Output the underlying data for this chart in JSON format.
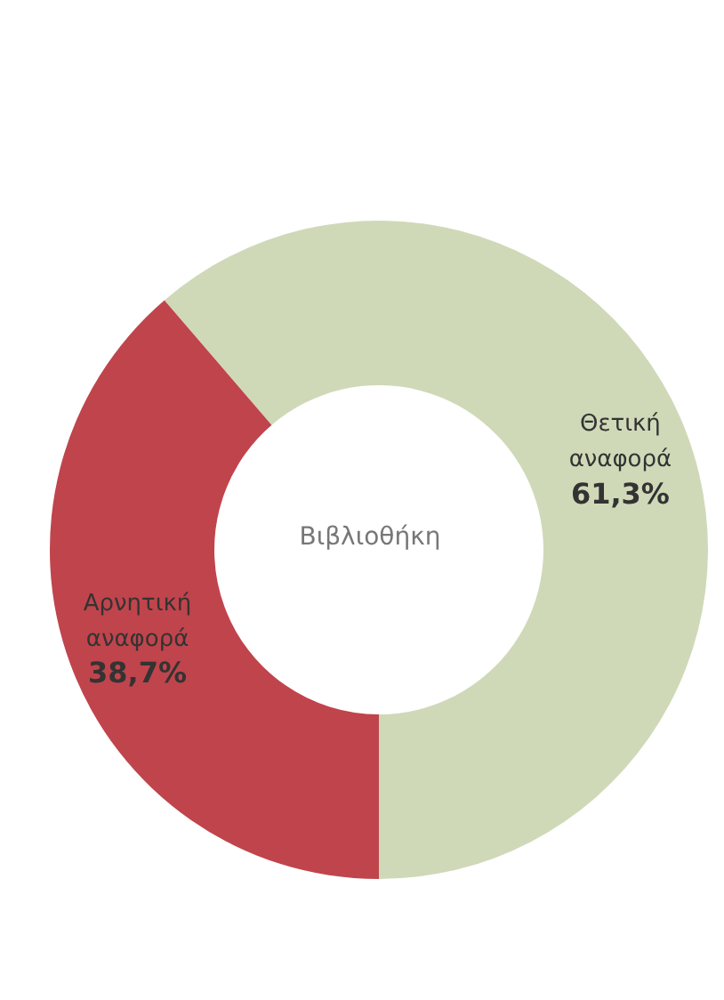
{
  "chart_data": {
    "type": "donut",
    "title": "Βιβλιοθήκη",
    "categories": [
      "Θετική αναφορά",
      "Αρνητική αναφορά"
    ],
    "values": [
      61.3,
      38.7
    ],
    "value_labels": [
      "61,3%",
      "38,7%"
    ],
    "colors": [
      "#cfd9b8",
      "#c0444c"
    ]
  }
}
